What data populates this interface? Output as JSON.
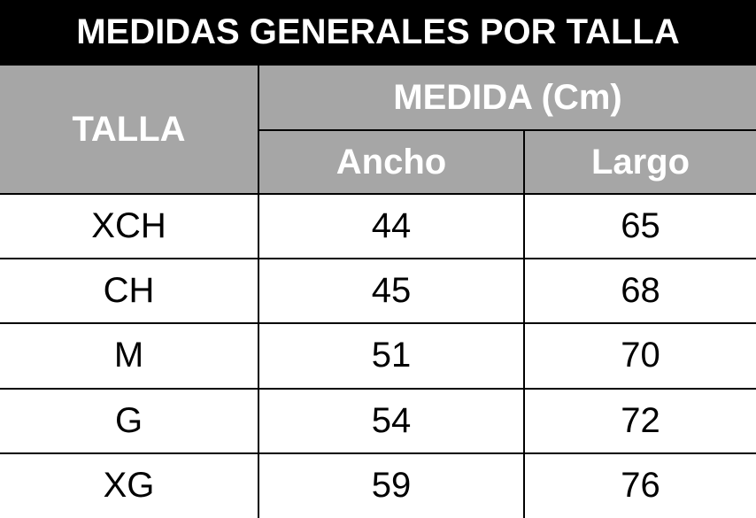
{
  "title": "MEDIDAS GENERALES POR TALLA",
  "table": {
    "size_header": "TALLA",
    "measure_header": "MEDIDA (Cm)",
    "width_header": "Ancho",
    "length_header": "Largo",
    "rows": [
      {
        "size": "XCH",
        "width": "44",
        "length": "65"
      },
      {
        "size": "CH",
        "width": "45",
        "length": "68"
      },
      {
        "size": "M",
        "width": "51",
        "length": "70"
      },
      {
        "size": "G",
        "width": "54",
        "length": "72"
      },
      {
        "size": "XG",
        "width": "59",
        "length": "76"
      }
    ]
  },
  "colors": {
    "title_background": "#000000",
    "header_background": "#a6a6a6",
    "header_text": "#ffffff",
    "cell_background": "#ffffff",
    "border": "#000000"
  }
}
